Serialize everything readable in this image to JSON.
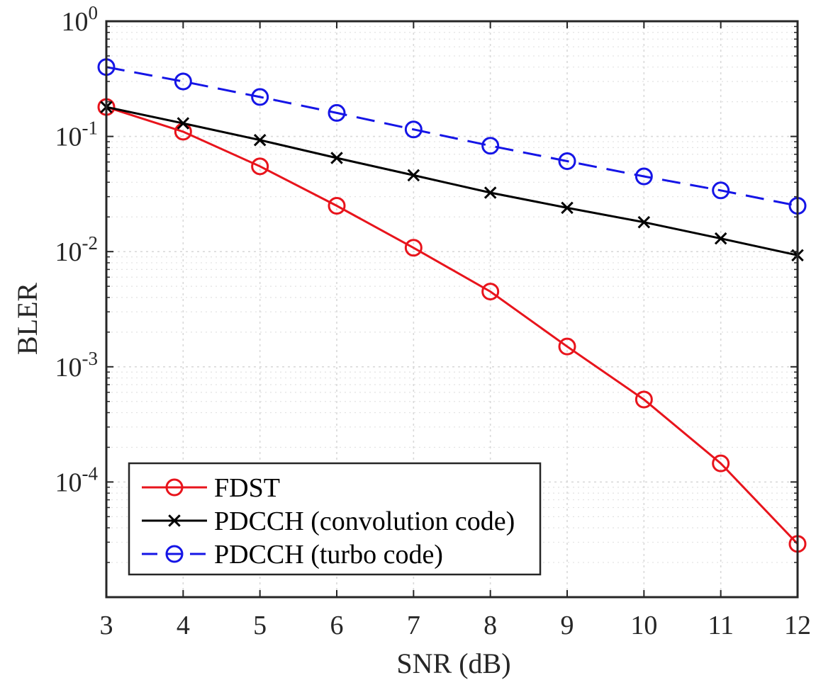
{
  "chart_data": {
    "type": "line",
    "title": "",
    "xlabel": "SNR (dB)",
    "ylabel": "BLER",
    "xlim": [
      3,
      12
    ],
    "ylim": [
      1e-05,
      1
    ],
    "y_scale": "log",
    "grid": "on (major and minor, dotted)",
    "legend_position": "bottom-left",
    "x": [
      3,
      4,
      5,
      6,
      7,
      8,
      9,
      10,
      11,
      12
    ],
    "x_ticks": [
      "3",
      "4",
      "5",
      "6",
      "7",
      "8",
      "9",
      "10",
      "11",
      "12"
    ],
    "y_ticks": [
      {
        "base": "10",
        "exp": "0",
        "value": 1
      },
      {
        "base": "10",
        "exp": "-1",
        "value": 0.1
      },
      {
        "base": "10",
        "exp": "-2",
        "value": 0.01
      },
      {
        "base": "10",
        "exp": "-3",
        "value": 0.001
      },
      {
        "base": "10",
        "exp": "-4",
        "value": 0.0001
      }
    ],
    "series": [
      {
        "name": "FDST",
        "color": "#e8141c",
        "marker": "circle",
        "line_style": "solid",
        "values": [
          0.18,
          0.11,
          0.055,
          0.025,
          0.0108,
          0.0045,
          0.0015,
          0.00052,
          0.000145,
          2.9e-05
        ]
      },
      {
        "name": "PDCCH (convolution code)",
        "color": "#000000",
        "marker": "x",
        "line_style": "solid",
        "values": [
          0.18,
          0.13,
          0.093,
          0.065,
          0.046,
          0.0325,
          0.024,
          0.018,
          0.013,
          0.0093
        ]
      },
      {
        "name": "PDCCH (turbo code)",
        "color": "#1515e6",
        "marker": "circle",
        "line_style": "dashed",
        "values": [
          0.4,
          0.3,
          0.22,
          0.16,
          0.115,
          0.083,
          0.061,
          0.045,
          0.034,
          0.025
        ]
      }
    ]
  }
}
